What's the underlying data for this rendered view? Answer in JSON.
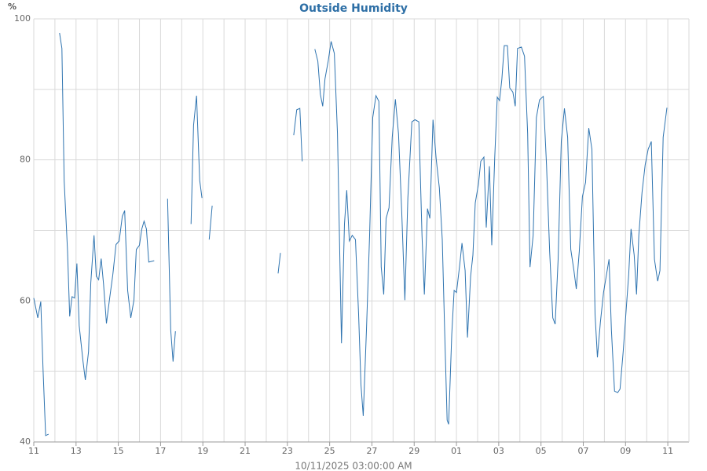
{
  "chart_data": {
    "type": "line",
    "title": "Outside Humidity",
    "y_label": "%",
    "x_label": "10/11/2025 03:00:00 AM",
    "xlim": [
      0,
      31
    ],
    "ylim": [
      40,
      100
    ],
    "xticks": [
      {
        "value": 0,
        "label": "11"
      },
      {
        "value": 2,
        "label": "13"
      },
      {
        "value": 4,
        "label": "15"
      },
      {
        "value": 6,
        "label": "17"
      },
      {
        "value": 8,
        "label": "19"
      },
      {
        "value": 10,
        "label": "21"
      },
      {
        "value": 12,
        "label": "23"
      },
      {
        "value": 14,
        "label": "25"
      },
      {
        "value": 16,
        "label": "27"
      },
      {
        "value": 18,
        "label": "29"
      },
      {
        "value": 20,
        "label": "01"
      },
      {
        "value": 22,
        "label": "03"
      },
      {
        "value": 24,
        "label": "05"
      },
      {
        "value": 26,
        "label": "07"
      },
      {
        "value": 28,
        "label": "09"
      },
      {
        "value": 30,
        "label": "11"
      }
    ],
    "xgrid_minor": [
      1,
      3,
      5,
      7,
      9,
      11,
      13,
      15,
      17,
      19,
      21,
      23,
      25,
      27,
      29
    ],
    "yticks": [
      40,
      60,
      80,
      100
    ],
    "ygrid_minor": [
      50,
      70,
      90
    ],
    "grid": true,
    "x": [
      0,
      0.19,
      0.33,
      0.44,
      0.56,
      0.7,
      0.95,
      1.22,
      1.33,
      1.44,
      1.6,
      1.7,
      1.81,
      1.93,
      2.04,
      2.15,
      2.33,
      2.44,
      2.59,
      2.7,
      2.85,
      2.96,
      3.07,
      3.19,
      3.3,
      3.44,
      3.59,
      3.74,
      3.89,
      4.04,
      4.19,
      4.3,
      4.44,
      4.59,
      4.74,
      4.85,
      5,
      5.11,
      5.22,
      5.33,
      5.44,
      5.7,
      6.0,
      6.33,
      6.48,
      6.59,
      6.7,
      7.1,
      7.44,
      7.56,
      7.7,
      7.85,
      7.96,
      8.1,
      8.3,
      8.44,
      10.0,
      11.56,
      11.67,
      12.0,
      12.3,
      12.44,
      12.59,
      12.7,
      13.0,
      13.3,
      13.44,
      13.56,
      13.67,
      13.78,
      13.93,
      14.07,
      14.22,
      14.37,
      14.56,
      14.7,
      14.81,
      14.93,
      15.07,
      15.22,
      15.37,
      15.48,
      15.59,
      15.74,
      15.89,
      16.04,
      16.19,
      16.33,
      16.44,
      16.56,
      16.67,
      16.81,
      16.96,
      17.11,
      17.26,
      17.41,
      17.56,
      17.7,
      17.89,
      18.04,
      18.22,
      18.37,
      18.48,
      18.63,
      18.74,
      18.89,
      19.04,
      19.19,
      19.33,
      19.44,
      19.56,
      19.63,
      19.78,
      19.89,
      20,
      20.15,
      20.26,
      20.41,
      20.52,
      20.67,
      20.78,
      20.89,
      21.04,
      21.15,
      21.3,
      21.41,
      21.56,
      21.67,
      21.81,
      21.93,
      22.04,
      22.15,
      22.26,
      22.41,
      22.52,
      22.67,
      22.78,
      22.89,
      23.07,
      23.22,
      23.37,
      23.48,
      23.63,
      23.78,
      23.93,
      24.11,
      24.26,
      24.41,
      24.56,
      24.67,
      24.81,
      24.96,
      25.11,
      25.26,
      25.41,
      25.56,
      25.67,
      25.81,
      25.96,
      26.11,
      26.26,
      26.41,
      26.56,
      26.67,
      26.81,
      26.96,
      27.11,
      27.22,
      27.33,
      27.48,
      27.63,
      27.74,
      27.89,
      28.04,
      28.15,
      28.26,
      28.41,
      28.52,
      28.63,
      28.78,
      28.93,
      29.07,
      29.22,
      29.37,
      29.52,
      29.63,
      29.78,
      29.96
    ],
    "series": [
      {
        "name": "Outside Humidity",
        "color": "#2f74b0",
        "values": [
          60.4,
          57.6,
          59.9,
          50.3,
          40.9,
          41.1,
          null,
          98,
          95.8,
          77,
          67,
          57.8,
          60.6,
          60.4,
          65.3,
          56.5,
          51.4,
          48.8,
          52.8,
          62.6,
          69.3,
          63.5,
          63,
          66,
          62.4,
          56.8,
          60.4,
          63.7,
          68,
          68.5,
          72,
          72.8,
          61.5,
          57.6,
          60.1,
          67.3,
          67.9,
          70.2,
          71.3,
          70.2,
          65.5,
          65.7,
          null,
          74.5,
          55.9,
          51.4,
          55.7,
          null,
          70.9,
          84.9,
          89.1,
          77.1,
          74.6,
          null,
          68.7,
          73.5,
          null,
          63.9,
          66.8,
          null,
          83.5,
          87.1,
          87.3,
          79.8,
          null,
          95.7,
          94,
          89.3,
          87.6,
          91.5,
          94,
          96.8,
          95.1,
          83.7,
          54,
          70.9,
          75.7,
          68.5,
          69.3,
          68.7,
          58.1,
          48.1,
          43.7,
          55.9,
          69.3,
          86,
          89.1,
          88.3,
          64.8,
          60.9,
          71.7,
          73.2,
          83.2,
          88.6,
          83.7,
          72.6,
          60.1,
          74.6,
          85.4,
          85.7,
          85.4,
          69.3,
          60.9,
          73.1,
          71.7,
          85.7,
          80.2,
          76,
          68.7,
          55.9,
          43.1,
          42.5,
          55.3,
          61.5,
          61.2,
          65,
          68.2,
          64.3,
          54.8,
          63.5,
          66.5,
          73.9,
          76.5,
          79.8,
          80.4,
          70.4,
          79.1,
          67.9,
          80.4,
          88.9,
          88.4,
          91.5,
          96.2,
          96.2,
          90.2,
          89.6,
          87.6,
          95.8,
          96,
          94.7,
          83.7,
          64.8,
          69.3,
          86,
          88.5,
          89,
          79.3,
          67,
          57.6,
          56.7,
          65.9,
          82.6,
          87.3,
          83.2,
          67.3,
          64.3,
          61.7,
          67,
          74.8,
          76.8,
          84.5,
          81.5,
          58.1,
          52,
          57,
          61.2,
          63.9,
          65.9,
          55.9,
          47.2,
          47,
          47.5,
          52.8,
          59.2,
          63.7,
          70.2,
          66.5,
          60.9,
          69.3,
          75.4,
          79.3,
          81.5,
          82.6,
          65.9,
          62.8,
          64.3,
          83.2,
          87.4
        ]
      }
    ]
  }
}
